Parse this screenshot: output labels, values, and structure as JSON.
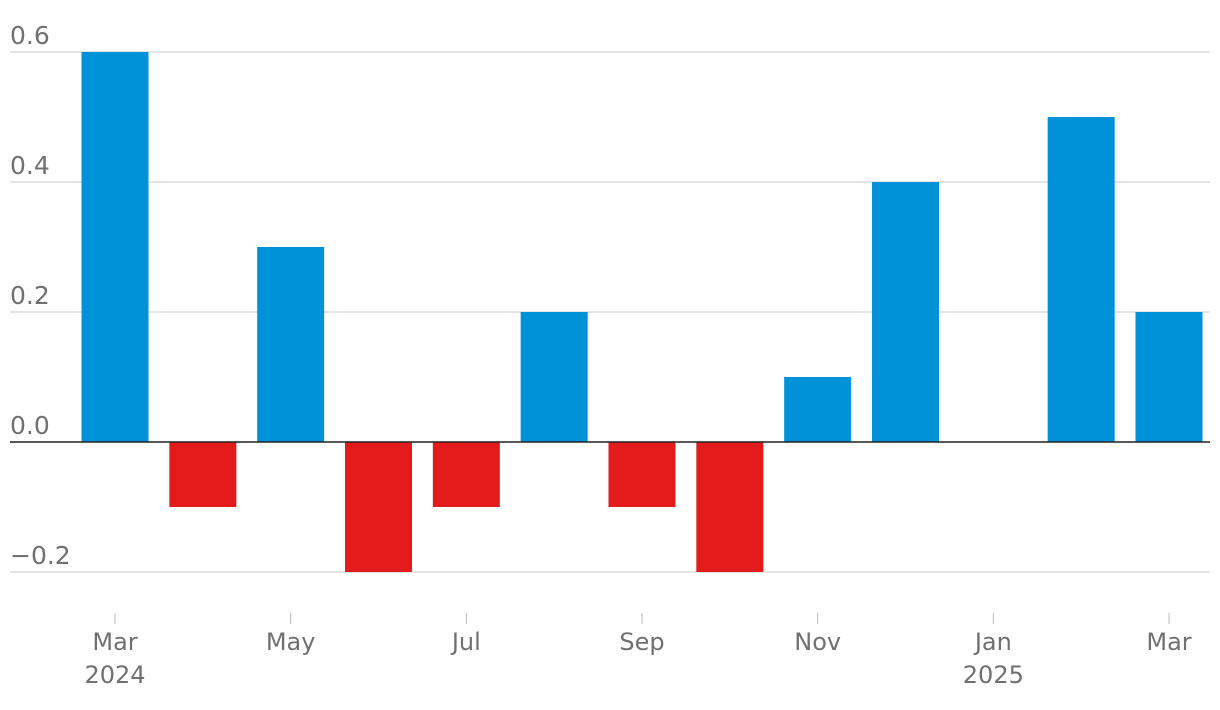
{
  "chart_data": {
    "type": "bar",
    "categories": [
      "2024-03",
      "2024-04",
      "2024-05",
      "2024-06",
      "2024-07",
      "2024-08",
      "2024-09",
      "2024-10",
      "2024-11",
      "2024-12",
      "2025-01",
      "2025-02",
      "2025-03"
    ],
    "values": [
      0.6,
      -0.1,
      0.3,
      -0.2,
      -0.1,
      0.2,
      -0.1,
      -0.2,
      0.1,
      0.4,
      0.0,
      0.5,
      0.2
    ],
    "ylim": [
      -0.2,
      0.6
    ],
    "yticks": [
      0.6,
      0.4,
      0.2,
      0.0,
      -0.2
    ],
    "ytick_labels": [
      "0.6",
      "0.4",
      "0.2",
      "0.0",
      "−0.2"
    ],
    "xticks": [
      {
        "category": "2024-03",
        "label": "Mar",
        "sublabel": "2024"
      },
      {
        "category": "2024-05",
        "label": "May",
        "sublabel": ""
      },
      {
        "category": "2024-07",
        "label": "Jul",
        "sublabel": ""
      },
      {
        "category": "2024-09",
        "label": "Sep",
        "sublabel": ""
      },
      {
        "category": "2024-11",
        "label": "Nov",
        "sublabel": ""
      },
      {
        "category": "2025-01",
        "label": "Jan",
        "sublabel": "2025"
      },
      {
        "category": "2025-03",
        "label": "Mar",
        "sublabel": ""
      }
    ],
    "colors": {
      "positive": "#0092d9",
      "negative": "#e31b1b"
    },
    "grid": true
  }
}
